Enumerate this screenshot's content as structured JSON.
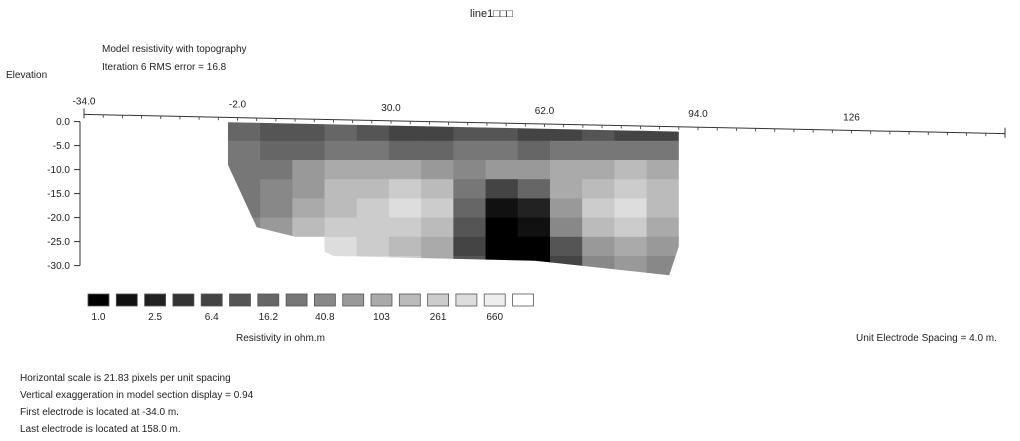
{
  "chart_data": {
    "type": "heatmap",
    "title": "line1□□□",
    "subtitle_lines": [
      "Model resistivity with topography",
      "Iteration 6 RMS error = 16.8"
    ],
    "ylabel": "Elevation",
    "x_ticks": [
      "-34.0",
      "-2.0",
      "30.0",
      "62.0",
      "94.0",
      "126"
    ],
    "x_tick_values": [
      -34,
      -2,
      30,
      62,
      94,
      126
    ],
    "xlim": [
      -34,
      158
    ],
    "y_ticks": [
      "0.0",
      "-5.0",
      "-10.0",
      "-15.0",
      "-20.0",
      "-25.0",
      "-30.0"
    ],
    "y_tick_values": [
      0,
      -5,
      -10,
      -15,
      -20,
      -25,
      -30
    ],
    "ylim": [
      -33,
      2
    ],
    "topography": {
      "x": [
        -34,
        158
      ],
      "y": [
        1.5,
        -2.5
      ]
    },
    "model_section": {
      "x_range": [
        -4,
        90
      ],
      "y_range": [
        -32,
        0
      ],
      "cells_x": 14,
      "cells_y": 8,
      "legend_index": [
        [
          6,
          5,
          5,
          6,
          5,
          4,
          4,
          5,
          5,
          4,
          4,
          5,
          4,
          4
        ],
        [
          7,
          6,
          6,
          7,
          7,
          6,
          6,
          7,
          7,
          6,
          7,
          7,
          7,
          7
        ],
        [
          7,
          7,
          9,
          10,
          10,
          10,
          9,
          8,
          9,
          9,
          10,
          10,
          11,
          10
        ],
        [
          7,
          8,
          9,
          11,
          11,
          12,
          11,
          7,
          4,
          6,
          10,
          11,
          12,
          11
        ],
        [
          7,
          8,
          10,
          11,
          12,
          13,
          12,
          6,
          1,
          2,
          9,
          12,
          13,
          11
        ],
        [
          8,
          9,
          11,
          12,
          12,
          12,
          11,
          5,
          0,
          1,
          8,
          11,
          12,
          10
        ],
        [
          15,
          15,
          15,
          13,
          12,
          11,
          10,
          4,
          0,
          0,
          5,
          9,
          10,
          9
        ],
        [
          15,
          15,
          15,
          14,
          13,
          12,
          10,
          5,
          0,
          0,
          4,
          8,
          9,
          8
        ]
      ]
    },
    "legend": {
      "title": "Resistivity in ohm.m",
      "labels": [
        "1.0",
        "2.5",
        "6.4",
        "16.2",
        "40.8",
        "103",
        "261",
        "660"
      ],
      "colors": [
        "#000000",
        "#111111",
        "#222222",
        "#333333",
        "#444444",
        "#555555",
        "#666666",
        "#777777",
        "#888888",
        "#999999",
        "#aaaaaa",
        "#bbbbbb",
        "#cccccc",
        "#dddddd",
        "#eeeeee",
        "#ffffff"
      ]
    },
    "grid": false
  },
  "annotations": {
    "unit_spacing": "Unit Electrode Spacing = 4.0 m.",
    "info_lines": [
      "Horizontal scale is 21.83 pixels per unit spacing",
      "Vertical exaggeration in model section display = 0.94",
      "First electrode is located at -34.0  m.",
      "Last electrode is located at 158.0 m."
    ]
  }
}
